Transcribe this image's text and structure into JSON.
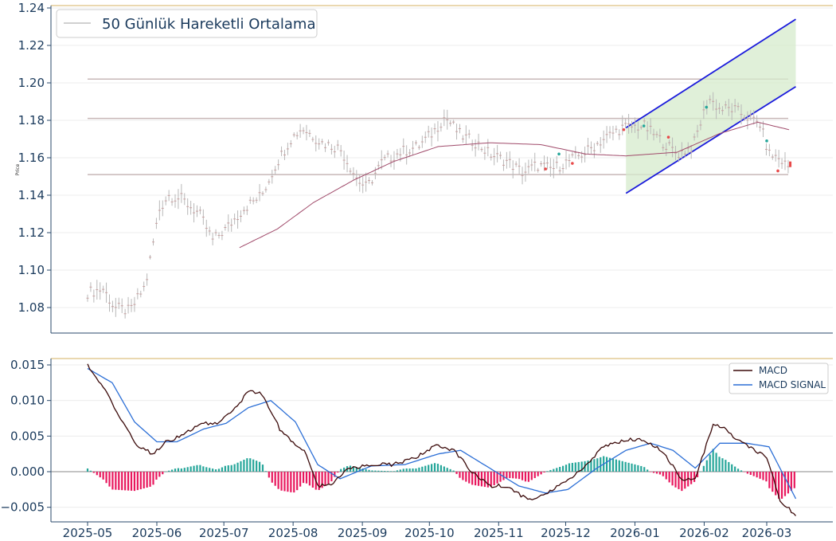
{
  "chart_data": [
    {
      "type": "candlestick",
      "ylabel": "Price",
      "ylim": [
        1.067,
        1.243
      ],
      "yticks": [
        "1.08",
        "1.10",
        "1.12",
        "1.14",
        "1.16",
        "1.18",
        "1.20",
        "1.22",
        "1.24"
      ],
      "legend": {
        "position": "top-left",
        "entries": [
          {
            "label": "50 Günlük Hareketli Ortalama",
            "color": "#b3b3b3"
          }
        ]
      },
      "horizontal_levels": [
        1.202,
        1.181,
        1.151
      ],
      "channel": {
        "start": "2025-12-28",
        "end": "2026-03-14",
        "upper": [
          1.176,
          1.234
        ],
        "lower": [
          1.141,
          1.198
        ],
        "fill": "#d6ebcc"
      },
      "price_anchors": [
        [
          "2025-05-01",
          1.088
        ],
        [
          "2025-05-08",
          1.09
        ],
        [
          "2025-05-13",
          1.08
        ],
        [
          "2025-05-20",
          1.078
        ],
        [
          "2025-05-27",
          1.092
        ],
        [
          "2025-06-02",
          1.132
        ],
        [
          "2025-06-06",
          1.14
        ],
        [
          "2025-06-12",
          1.138
        ],
        [
          "2025-06-20",
          1.13
        ],
        [
          "2025-06-26",
          1.116
        ],
        [
          "2025-07-02",
          1.122
        ],
        [
          "2025-07-10",
          1.133
        ],
        [
          "2025-07-18",
          1.14
        ],
        [
          "2025-07-25",
          1.158
        ],
        [
          "2025-07-31",
          1.17
        ],
        [
          "2025-08-05",
          1.176
        ],
        [
          "2025-08-14",
          1.168
        ],
        [
          "2025-08-22",
          1.165
        ],
        [
          "2025-08-30",
          1.148
        ],
        [
          "2025-09-03",
          1.144
        ],
        [
          "2025-09-10",
          1.158
        ],
        [
          "2025-09-18",
          1.163
        ],
        [
          "2025-09-26",
          1.166
        ],
        [
          "2025-10-03",
          1.174
        ],
        [
          "2025-10-08",
          1.182
        ],
        [
          "2025-10-15",
          1.172
        ],
        [
          "2025-10-22",
          1.168
        ],
        [
          "2025-10-28",
          1.162
        ],
        [
          "2025-11-05",
          1.158
        ],
        [
          "2025-11-12",
          1.152
        ],
        [
          "2025-11-18",
          1.156
        ],
        [
          "2025-11-25",
          1.154
        ],
        [
          "2025-12-02",
          1.158
        ],
        [
          "2025-12-10",
          1.163
        ],
        [
          "2025-12-18",
          1.17
        ],
        [
          "2025-12-26",
          1.176
        ],
        [
          "2026-01-05",
          1.177
        ],
        [
          "2026-01-12",
          1.17
        ],
        [
          "2026-01-20",
          1.162
        ],
        [
          "2026-01-27",
          1.166
        ],
        [
          "2026-02-03",
          1.192
        ],
        [
          "2026-02-08",
          1.186
        ],
        [
          "2026-02-14",
          1.186
        ],
        [
          "2026-02-20",
          1.182
        ],
        [
          "2026-02-26",
          1.178
        ],
        [
          "2026-03-02",
          1.162
        ],
        [
          "2026-03-06",
          1.16
        ],
        [
          "2026-03-11",
          1.155
        ]
      ],
      "ma50_anchors": [
        [
          "2025-07-08",
          1.112
        ],
        [
          "2025-07-25",
          1.122
        ],
        [
          "2025-08-10",
          1.136
        ],
        [
          "2025-08-28",
          1.148
        ],
        [
          "2025-09-15",
          1.158
        ],
        [
          "2025-10-05",
          1.166
        ],
        [
          "2025-10-28",
          1.168
        ],
        [
          "2025-11-20",
          1.167
        ],
        [
          "2025-12-10",
          1.162
        ],
        [
          "2025-12-28",
          1.161
        ],
        [
          "2026-01-20",
          1.163
        ],
        [
          "2026-02-08",
          1.173
        ],
        [
          "2026-02-25",
          1.179
        ],
        [
          "2026-03-11",
          1.175
        ]
      ]
    },
    {
      "type": "line+bar",
      "ylim": [
        -0.0068,
        0.0162
      ],
      "yticks": [
        "−0.005",
        "0.000",
        "0.005",
        "0.010",
        "0.015"
      ],
      "xticks": [
        "2025-05",
        "2025-06",
        "2025-07",
        "2025-08",
        "2025-09",
        "2025-10",
        "2025-11",
        "2025-12",
        "2026-01",
        "2026-02",
        "2026-03"
      ],
      "legend": {
        "position": "top-right"
      },
      "series": [
        {
          "name": "MACD",
          "color": "#3b0a0a",
          "anchors": [
            [
              "2025-05-01",
              0.015
            ],
            [
              "2025-05-08",
              0.012
            ],
            [
              "2025-05-15",
              0.008
            ],
            [
              "2025-05-22",
              0.004
            ],
            [
              "2025-05-30",
              0.0025
            ],
            [
              "2025-06-05",
              0.0042
            ],
            [
              "2025-06-12",
              0.005
            ],
            [
              "2025-06-20",
              0.0068
            ],
            [
              "2025-06-28",
              0.0068
            ],
            [
              "2025-07-05",
              0.0085
            ],
            [
              "2025-07-12",
              0.0112
            ],
            [
              "2025-07-18",
              0.011
            ],
            [
              "2025-07-26",
              0.006
            ],
            [
              "2025-08-01",
              0.004
            ],
            [
              "2025-08-06",
              0.003
            ],
            [
              "2025-08-12",
              -0.002
            ],
            [
              "2025-08-18",
              -0.0018
            ],
            [
              "2025-08-26",
              0.0005
            ],
            [
              "2025-09-05",
              0.001
            ],
            [
              "2025-09-15",
              0.001
            ],
            [
              "2025-09-25",
              0.002
            ],
            [
              "2025-10-04",
              0.0038
            ],
            [
              "2025-10-12",
              0.003
            ],
            [
              "2025-10-20",
              0.0
            ],
            [
              "2025-10-28",
              -0.002
            ],
            [
              "2025-11-05",
              -0.002
            ],
            [
              "2025-11-14",
              -0.004
            ],
            [
              "2025-11-22",
              -0.003
            ],
            [
              "2025-12-01",
              -0.0015
            ],
            [
              "2025-12-10",
              0.001
            ],
            [
              "2025-12-18",
              0.0035
            ],
            [
              "2025-12-28",
              0.0045
            ],
            [
              "2026-01-05",
              0.0045
            ],
            [
              "2026-01-13",
              0.003
            ],
            [
              "2026-01-22",
              -0.001
            ],
            [
              "2026-01-28",
              -0.001
            ],
            [
              "2026-02-05",
              0.0066
            ],
            [
              "2026-02-10",
              0.006
            ],
            [
              "2026-02-16",
              0.0045
            ],
            [
              "2026-02-24",
              0.003
            ],
            [
              "2026-03-01",
              0.002
            ],
            [
              "2026-03-07",
              -0.004
            ],
            [
              "2026-03-14",
              -0.0062
            ]
          ]
        },
        {
          "name": "MACD SIGNAL",
          "color": "#2c6fd6",
          "anchors": [
            [
              "2025-05-01",
              0.0145
            ],
            [
              "2025-05-12",
              0.0125
            ],
            [
              "2025-05-22",
              0.007
            ],
            [
              "2025-06-01",
              0.0042
            ],
            [
              "2025-06-10",
              0.0042
            ],
            [
              "2025-06-22",
              0.006
            ],
            [
              "2025-07-02",
              0.0068
            ],
            [
              "2025-07-12",
              0.009
            ],
            [
              "2025-07-22",
              0.01
            ],
            [
              "2025-08-02",
              0.007
            ],
            [
              "2025-08-12",
              0.001
            ],
            [
              "2025-08-22",
              -0.001
            ],
            [
              "2025-09-05",
              0.0008
            ],
            [
              "2025-09-20",
              0.001
            ],
            [
              "2025-10-05",
              0.0025
            ],
            [
              "2025-10-15",
              0.003
            ],
            [
              "2025-10-28",
              0.0005
            ],
            [
              "2025-11-10",
              -0.002
            ],
            [
              "2025-11-22",
              -0.003
            ],
            [
              "2025-12-02",
              -0.0025
            ],
            [
              "2025-12-15",
              0.0005
            ],
            [
              "2025-12-28",
              0.003
            ],
            [
              "2026-01-08",
              0.004
            ],
            [
              "2026-01-18",
              0.003
            ],
            [
              "2026-01-28",
              0.0005
            ],
            [
              "2026-02-08",
              0.004
            ],
            [
              "2026-02-20",
              0.004
            ],
            [
              "2026-03-02",
              0.0035
            ],
            [
              "2026-03-14",
              -0.0038
            ]
          ]
        },
        {
          "name": "Histogram",
          "positive_color": "#26a69a",
          "negative_color": "#e8175d"
        }
      ]
    }
  ],
  "colors": {
    "axis": "#2a4a6b",
    "tick_text": "#1a3a5c",
    "grid": "#ececec",
    "price_bar": "#b8b8b8",
    "ma50": "#a04a6a",
    "level": "#c8b8b8",
    "channel_line": "#1a1adc",
    "top_border": "#d4b060"
  }
}
